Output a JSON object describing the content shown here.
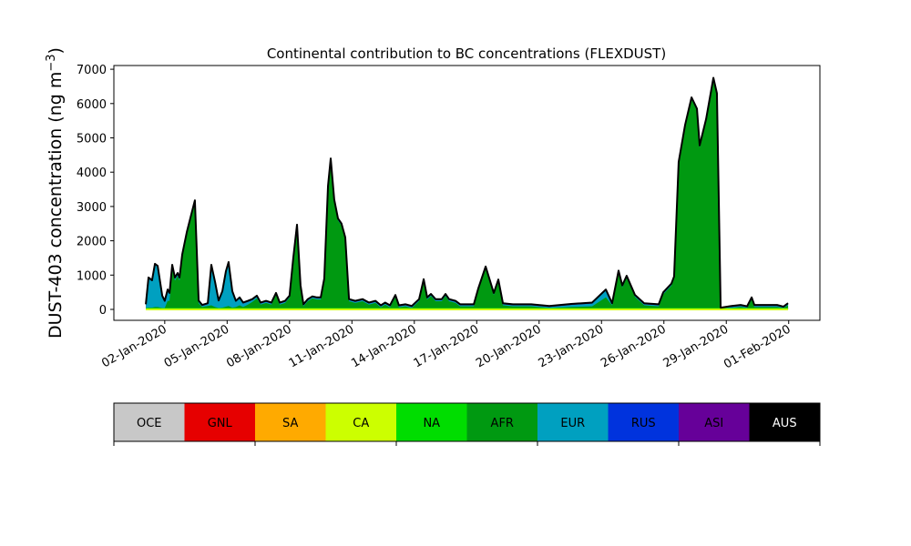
{
  "chart_data": {
    "type": "area",
    "title": "Continental contribution to BC concentrations (FLEXDUST)",
    "ylabel": "DUST-403 concentration (ng m",
    "ylabel_sup": "−3",
    "ylabel_close": ")",
    "xlabel": "",
    "x_unit": "day of January 2020 (fractional)",
    "ylim": [
      -300,
      7100
    ],
    "xlim": [
      -0.5,
      33.0
    ],
    "yticks": [
      0,
      1000,
      2000,
      3000,
      4000,
      5000,
      6000,
      7000
    ],
    "ytick_labels": [
      "0",
      "1000",
      "2000",
      "3000",
      "4000",
      "5000",
      "6000",
      "7000"
    ],
    "xticks": [
      2,
      5,
      8,
      11,
      14,
      17,
      20,
      23,
      26,
      29,
      32
    ],
    "xtick_labels": [
      "02-Jan-2020",
      "05-Jan-2020",
      "08-Jan-2020",
      "11-Jan-2020",
      "14-Jan-2020",
      "17-Jan-2020",
      "20-Jan-2020",
      "23-Jan-2020",
      "26-Jan-2020",
      "29-Jan-2020",
      "01-Feb-2020"
    ],
    "x": [
      1.09,
      1.22,
      1.39,
      1.53,
      1.66,
      1.88,
      2.0,
      2.14,
      2.23,
      2.36,
      2.49,
      2.62,
      2.71,
      2.84,
      3.06,
      3.28,
      3.45,
      3.63,
      3.8,
      4.07,
      4.24,
      4.42,
      4.59,
      4.77,
      4.94,
      5.07,
      5.25,
      5.42,
      5.6,
      5.77,
      6.0,
      6.21,
      6.43,
      6.61,
      6.87,
      7.13,
      7.35,
      7.53,
      7.79,
      8.0,
      8.18,
      8.36,
      8.53,
      8.67,
      8.88,
      9.1,
      9.32,
      9.5,
      9.67,
      9.85,
      9.98,
      10.15,
      10.33,
      10.5,
      10.68,
      10.86,
      11.16,
      11.51,
      11.82,
      12.13,
      12.39,
      12.6,
      12.83,
      13.09,
      13.26,
      13.57,
      13.88,
      14.23,
      14.45,
      14.62,
      14.8,
      15.02,
      15.32,
      15.5,
      15.67,
      15.98,
      16.2,
      16.86,
      17.07,
      17.43,
      17.82,
      18.04,
      18.26,
      18.74,
      19.62,
      20.49,
      21.54,
      22.55,
      23.21,
      23.51,
      23.82,
      24.0,
      24.21,
      24.61,
      25.05,
      25.75,
      25.97,
      26.36,
      26.49,
      26.71,
      27.02,
      27.33,
      27.59,
      27.72,
      28.03,
      28.38,
      28.55,
      28.73,
      29.25,
      29.69,
      30.0,
      30.22,
      30.35,
      31.44,
      31.75,
      31.97
    ],
    "total": [
      150,
      930,
      850,
      1330,
      1270,
      400,
      250,
      580,
      480,
      1300,
      930,
      1060,
      930,
      1600,
      2250,
      2780,
      3180,
      260,
      130,
      180,
      1300,
      800,
      260,
      530,
      1110,
      1380,
      530,
      250,
      350,
      200,
      250,
      300,
      400,
      200,
      250,
      200,
      480,
      200,
      250,
      400,
      1500,
      2470,
      700,
      150,
      300,
      380,
      350,
      350,
      900,
      3600,
      4400,
      3200,
      2650,
      2500,
      2100,
      300,
      250,
      300,
      200,
      250,
      120,
      200,
      120,
      420,
      120,
      150,
      100,
      300,
      880,
      350,
      450,
      300,
      300,
      450,
      300,
      250,
      150,
      150,
      600,
      1250,
      480,
      870,
      180,
      150,
      150,
      100,
      160,
      200,
      580,
      180,
      1130,
      700,
      980,
      420,
      180,
      150,
      500,
      750,
      960,
      4300,
      5380,
      6180,
      5850,
      4780,
      5550,
      6750,
      6300,
      50,
      100,
      130,
      90,
      350,
      130,
      130,
      80,
      180
    ],
    "series": [
      {
        "name": "NA",
        "color": "#00dd00",
        "constant": 40
      },
      {
        "name": "AFR",
        "color": "#009911",
        "note": "remainder"
      },
      {
        "name": "EUR",
        "color": "#00a0c0",
        "values": [
          80,
          850,
          770,
          1230,
          1170,
          330,
          180,
          300,
          200,
          100,
          60,
          60,
          60,
          60,
          60,
          60,
          60,
          50,
          30,
          50,
          1150,
          700,
          200,
          450,
          1000,
          1250,
          450,
          150,
          200,
          100,
          80,
          50,
          50,
          30,
          30,
          30,
          30,
          30,
          30,
          30,
          30,
          30,
          30,
          30,
          30,
          30,
          30,
          30,
          30,
          30,
          30,
          30,
          30,
          30,
          30,
          30,
          30,
          30,
          30,
          30,
          30,
          30,
          30,
          30,
          30,
          30,
          30,
          30,
          30,
          30,
          30,
          30,
          30,
          30,
          30,
          30,
          30,
          30,
          30,
          30,
          30,
          30,
          30,
          30,
          30,
          30,
          60,
          80,
          200,
          30,
          30,
          30,
          30,
          30,
          30,
          30,
          30,
          30,
          30,
          30,
          30,
          30,
          30,
          30,
          30,
          30,
          30,
          10,
          30,
          30,
          30,
          30,
          30,
          30,
          30,
          30
        ]
      },
      {
        "name": "ASI",
        "color": "#660099",
        "constant": 30
      },
      {
        "name": "AUS",
        "color": "#000000",
        "note": "total outline"
      }
    ],
    "legend": {
      "placement": "bottom colorbar",
      "entries": [
        {
          "label": "OCE",
          "color": "#c8c8c8",
          "text_color": "#000000"
        },
        {
          "label": "GNL",
          "color": "#e60000",
          "text_color": "#000000"
        },
        {
          "label": "SA",
          "color": "#ffaa00",
          "text_color": "#000000"
        },
        {
          "label": "CA",
          "color": "#ccff00",
          "text_color": "#000000"
        },
        {
          "label": "NA",
          "color": "#00dd00",
          "text_color": "#000000"
        },
        {
          "label": "AFR",
          "color": "#009911",
          "text_color": "#000000"
        },
        {
          "label": "EUR",
          "color": "#00a0c0",
          "text_color": "#000000"
        },
        {
          "label": "RUS",
          "color": "#0033dd",
          "text_color": "#000000"
        },
        {
          "label": "ASI",
          "color": "#660099",
          "text_color": "#000000"
        },
        {
          "label": "AUS",
          "color": "#000000",
          "text_color": "#ffffff"
        }
      ]
    },
    "grid": false
  }
}
